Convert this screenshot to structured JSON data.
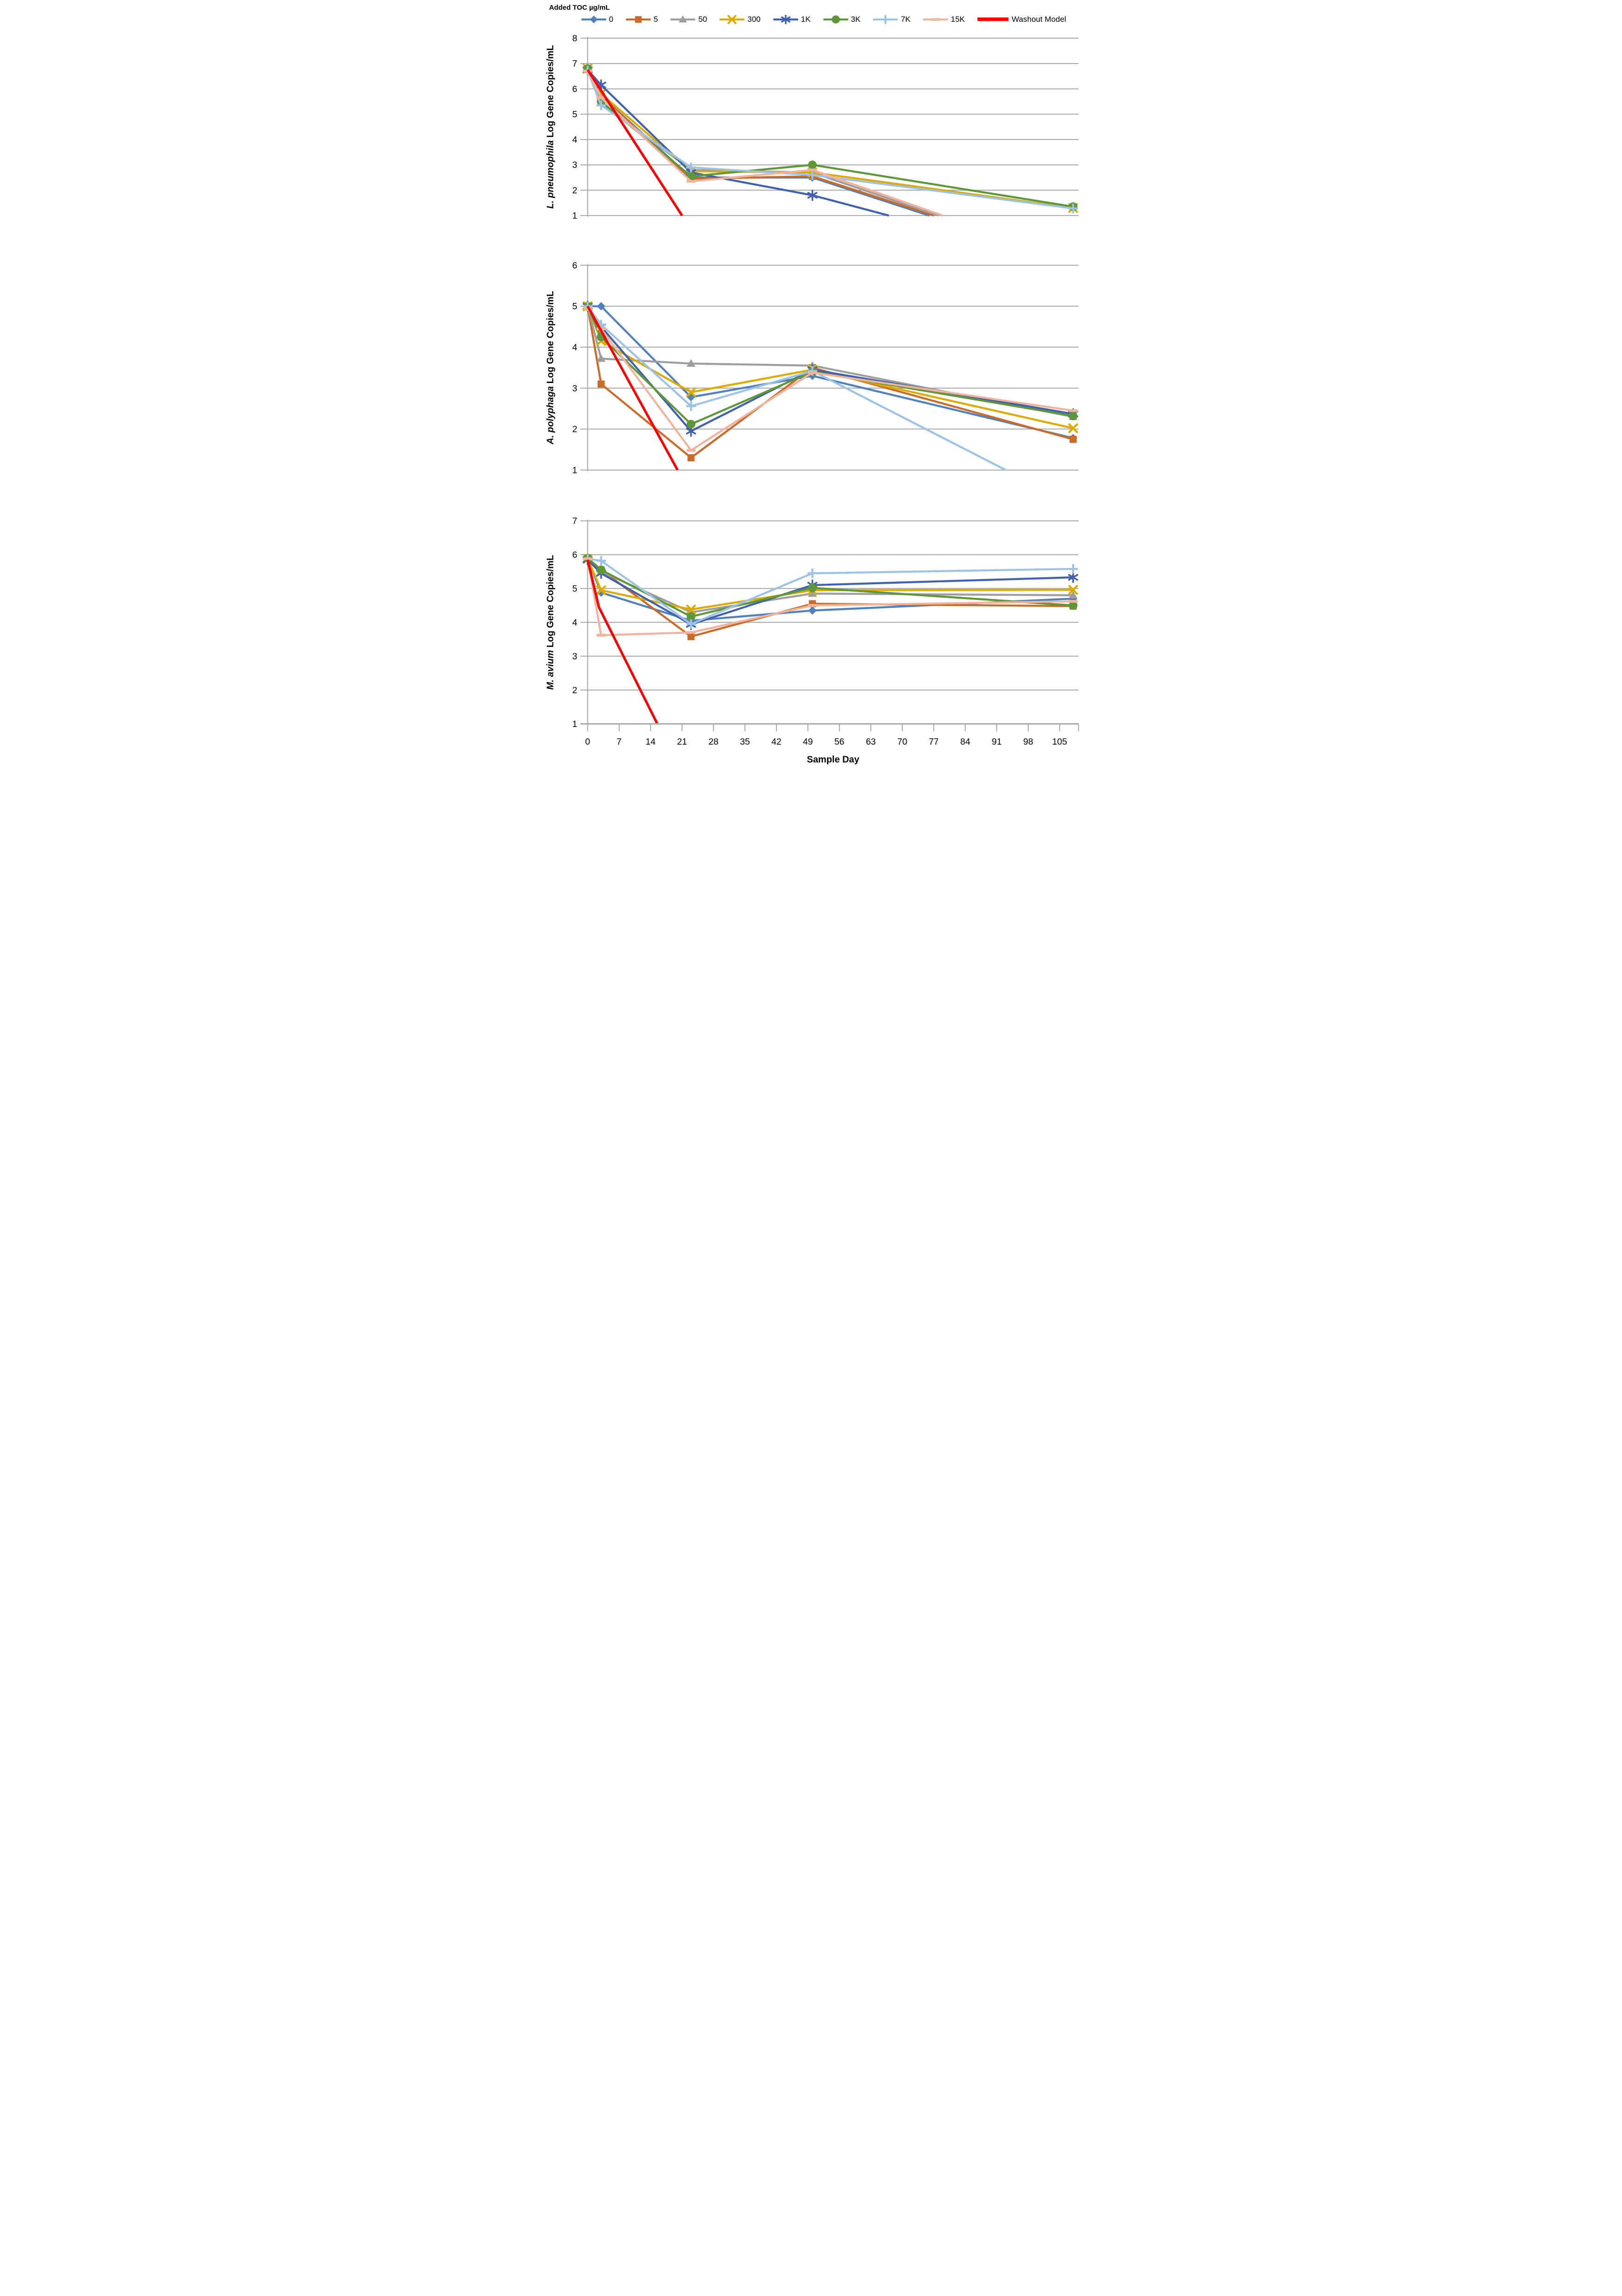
{
  "legend": {
    "title": "Added TOC µg/mL",
    "items": [
      {
        "label": "0",
        "color": "#4e81bd",
        "marker": "diamond"
      },
      {
        "label": "5",
        "color": "#cd6a27",
        "marker": "square"
      },
      {
        "label": "50",
        "color": "#9e9e9e",
        "marker": "triangle"
      },
      {
        "label": "300",
        "color": "#ddaa00",
        "marker": "x"
      },
      {
        "label": "1K",
        "color": "#4062ae",
        "marker": "asterisk"
      },
      {
        "label": "3K",
        "color": "#5d9738",
        "marker": "circle"
      },
      {
        "label": "7K",
        "color": "#9cc3e5",
        "marker": "plus"
      },
      {
        "label": "15K",
        "color": "#f1b39c",
        "marker": "dash"
      },
      {
        "label": "Washout Model",
        "color": "#ff0000",
        "marker": "none"
      }
    ]
  },
  "x_axis": {
    "label": "Sample Day",
    "ticks": [
      0,
      7,
      14,
      21,
      28,
      35,
      42,
      49,
      56,
      63,
      70,
      77,
      84,
      91,
      98,
      105
    ]
  },
  "chart_data": [
    {
      "id": "lp",
      "type": "line",
      "title": "",
      "ylabel_italic": "L. pneumophila",
      "ylabel_rest": " Log Gene Copies/mL",
      "xlabel": "Sample Day",
      "ylim": [
        1,
        8
      ],
      "yticks": [
        1,
        2,
        3,
        4,
        5,
        6,
        7,
        8
      ],
      "grid": true,
      "legend_position": "top",
      "series": [
        {
          "name": "0",
          "points": [
            [
              0,
              6.75
            ],
            [
              3,
              5.72
            ],
            [
              23,
              2.5
            ],
            [
              50,
              2.5
            ],
            [
              76,
              1.0
            ]
          ]
        },
        {
          "name": "5",
          "points": [
            [
              0,
              6.78
            ],
            [
              3,
              5.7
            ],
            [
              23,
              2.45
            ],
            [
              50,
              2.55
            ],
            [
              77,
              1.0
            ]
          ]
        },
        {
          "name": "50",
          "points": [
            [
              0,
              6.75
            ],
            [
              3,
              5.45
            ],
            [
              23,
              2.8
            ],
            [
              50,
              2.7
            ],
            [
              78,
              1.0
            ]
          ]
        },
        {
          "name": "300",
          "points": [
            [
              0,
              6.8
            ],
            [
              3,
              5.8
            ],
            [
              23,
              2.75
            ],
            [
              50,
              2.7
            ],
            [
              108,
              1.3
            ]
          ]
        },
        {
          "name": "1K",
          "points": [
            [
              0,
              6.75
            ],
            [
              3,
              6.15
            ],
            [
              23,
              2.7
            ],
            [
              50,
              1.8
            ],
            [
              67,
              1.0
            ]
          ]
        },
        {
          "name": "3K",
          "points": [
            [
              0,
              6.8
            ],
            [
              3,
              5.5
            ],
            [
              23,
              2.55
            ],
            [
              50,
              3.0
            ],
            [
              108,
              1.35
            ]
          ]
        },
        {
          "name": "7K",
          "points": [
            [
              0,
              6.72
            ],
            [
              3,
              5.35
            ],
            [
              23,
              2.9
            ],
            [
              50,
              2.6
            ],
            [
              108,
              1.28
            ]
          ]
        },
        {
          "name": "15K",
          "points": [
            [
              0,
              6.7
            ],
            [
              3,
              5.65
            ],
            [
              23,
              2.35
            ],
            [
              50,
              2.8
            ],
            [
              79,
              1.0
            ]
          ]
        }
      ],
      "washout_model": [
        [
          0,
          6.75
        ],
        [
          21,
          1.0
        ]
      ]
    },
    {
      "id": "ap",
      "type": "line",
      "title": "",
      "ylabel_italic": "A. polyphaga",
      "ylabel_rest": " Log Gene Copies/mL",
      "xlabel": "Sample Day",
      "ylim": [
        1,
        6
      ],
      "yticks": [
        1,
        2,
        3,
        4,
        5,
        6
      ],
      "grid": true,
      "legend_position": "top",
      "series": [
        {
          "name": "0",
          "points": [
            [
              0,
              5.0
            ],
            [
              3,
              5.0
            ],
            [
              23,
              2.78
            ],
            [
              50,
              3.3
            ],
            [
              108,
              1.78
            ]
          ]
        },
        {
          "name": "5",
          "points": [
            [
              0,
              5.0
            ],
            [
              3,
              3.1
            ],
            [
              23,
              1.3
            ],
            [
              50,
              3.5
            ],
            [
              108,
              1.75
            ]
          ]
        },
        {
          "name": "50",
          "points": [
            [
              0,
              5.0
            ],
            [
              3,
              3.72
            ],
            [
              23,
              3.6
            ],
            [
              50,
              3.55
            ],
            [
              108,
              2.3
            ]
          ]
        },
        {
          "name": "300",
          "points": [
            [
              0,
              5.0
            ],
            [
              3,
              4.15
            ],
            [
              23,
              2.9
            ],
            [
              50,
              3.45
            ],
            [
              108,
              2.02
            ]
          ]
        },
        {
          "name": "1K",
          "points": [
            [
              0,
              5.0
            ],
            [
              3,
              4.5
            ],
            [
              23,
              1.95
            ],
            [
              50,
              3.45
            ],
            [
              108,
              2.37
            ]
          ]
        },
        {
          "name": "3K",
          "points": [
            [
              0,
              5.0
            ],
            [
              3,
              4.25
            ],
            [
              23,
              2.12
            ],
            [
              50,
              3.4
            ],
            [
              108,
              2.32
            ]
          ]
        },
        {
          "name": "7K",
          "points": [
            [
              0,
              5.0
            ],
            [
              3,
              4.55
            ],
            [
              23,
              2.56
            ],
            [
              50,
              3.42
            ],
            [
              93,
              1.0
            ]
          ]
        },
        {
          "name": "15K",
          "points": [
            [
              0,
              4.95
            ],
            [
              3,
              4.45
            ],
            [
              23,
              1.48
            ],
            [
              50,
              3.38
            ],
            [
              108,
              2.45
            ]
          ]
        }
      ],
      "washout_model": [
        [
          0,
          5.0
        ],
        [
          20,
          1.0
        ]
      ]
    },
    {
      "id": "ma",
      "type": "line",
      "title": "",
      "ylabel_italic": "M. avium",
      "ylabel_rest": " Log Gene Copies/mL",
      "xlabel": "Sample Day",
      "ylim": [
        1,
        7
      ],
      "yticks": [
        1,
        2,
        3,
        4,
        5,
        6,
        7
      ],
      "grid": true,
      "legend_position": "top",
      "series": [
        {
          "name": "0",
          "points": [
            [
              0,
              5.88
            ],
            [
              3,
              4.88
            ],
            [
              23,
              4.05
            ],
            [
              50,
              4.35
            ],
            [
              108,
              4.7
            ]
          ]
        },
        {
          "name": "5",
          "points": [
            [
              0,
              5.9
            ],
            [
              3,
              5.55
            ],
            [
              23,
              3.58
            ],
            [
              50,
              4.55
            ],
            [
              108,
              4.48
            ]
          ]
        },
        {
          "name": "50",
          "points": [
            [
              0,
              5.9
            ],
            [
              3,
              5.5
            ],
            [
              23,
              4.3
            ],
            [
              50,
              4.85
            ],
            [
              108,
              4.8
            ]
          ]
        },
        {
          "name": "300",
          "points": [
            [
              0,
              5.88
            ],
            [
              3,
              4.95
            ],
            [
              23,
              4.38
            ],
            [
              50,
              4.95
            ],
            [
              108,
              4.96
            ]
          ]
        },
        {
          "name": "1K",
          "points": [
            [
              0,
              5.85
            ],
            [
              3,
              5.45
            ],
            [
              23,
              3.94
            ],
            [
              50,
              5.1
            ],
            [
              108,
              5.33
            ]
          ]
        },
        {
          "name": "3K",
          "points": [
            [
              0,
              5.9
            ],
            [
              3,
              5.55
            ],
            [
              23,
              4.17
            ],
            [
              50,
              5.02
            ],
            [
              108,
              4.5
            ]
          ]
        },
        {
          "name": "7K",
          "points": [
            [
              0,
              5.88
            ],
            [
              3,
              5.82
            ],
            [
              23,
              3.95
            ],
            [
              50,
              5.45
            ],
            [
              108,
              5.58
            ]
          ]
        },
        {
          "name": "15K",
          "points": [
            [
              0,
              5.88
            ],
            [
              3,
              3.62
            ],
            [
              23,
              3.7
            ],
            [
              50,
              4.5
            ],
            [
              108,
              4.62
            ]
          ]
        }
      ],
      "washout_model": [
        [
          0,
          5.85
        ],
        [
          2.5,
          4.45
        ],
        [
          15.5,
          1.0
        ]
      ]
    }
  ]
}
